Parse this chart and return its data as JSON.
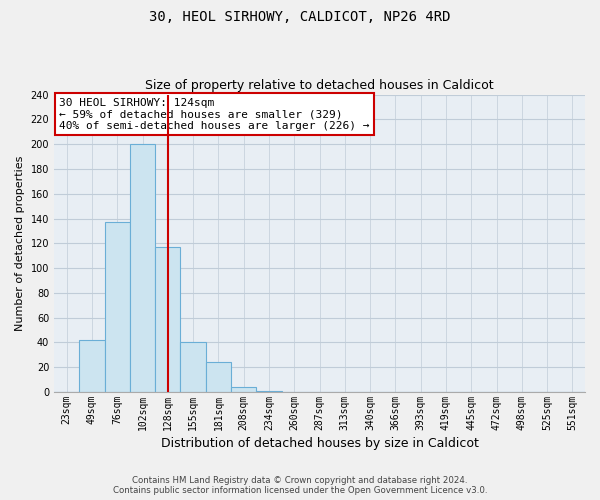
{
  "title": "30, HEOL SIRHOWY, CALDICOT, NP26 4RD",
  "subtitle": "Size of property relative to detached houses in Caldicot",
  "xlabel": "Distribution of detached houses by size in Caldicot",
  "ylabel": "Number of detached properties",
  "bar_labels": [
    "23sqm",
    "49sqm",
    "76sqm",
    "102sqm",
    "128sqm",
    "155sqm",
    "181sqm",
    "208sqm",
    "234sqm",
    "260sqm",
    "287sqm",
    "313sqm",
    "340sqm",
    "366sqm",
    "393sqm",
    "419sqm",
    "445sqm",
    "472sqm",
    "498sqm",
    "525sqm",
    "551sqm"
  ],
  "bar_values": [
    0,
    42,
    137,
    200,
    117,
    40,
    24,
    4,
    1,
    0,
    0,
    0,
    0,
    0,
    0,
    0,
    0,
    0,
    0,
    0,
    0
  ],
  "bar_fill_color": "#cce4f0",
  "bar_edge_color": "#6aaed6",
  "vline_color": "#cc0000",
  "vline_index": 4,
  "annotation_text": "30 HEOL SIRHOWY: 124sqm\n← 59% of detached houses are smaller (329)\n40% of semi-detached houses are larger (226) →",
  "annotation_box_color": "white",
  "annotation_box_edge_color": "#cc0000",
  "ylim": [
    0,
    240
  ],
  "yticks": [
    0,
    20,
    40,
    60,
    80,
    100,
    120,
    140,
    160,
    180,
    200,
    220,
    240
  ],
  "footer_line1": "Contains HM Land Registry data © Crown copyright and database right 2024.",
  "footer_line2": "Contains public sector information licensed under the Open Government Licence v3.0.",
  "bg_color": "#f0f0f0",
  "plot_bg_color": "#e8eef4",
  "grid_color": "#c0ccd8",
  "title_fontsize": 10,
  "subtitle_fontsize": 9,
  "ylabel_fontsize": 8,
  "xlabel_fontsize": 9,
  "tick_fontsize": 7,
  "annotation_fontsize": 8
}
